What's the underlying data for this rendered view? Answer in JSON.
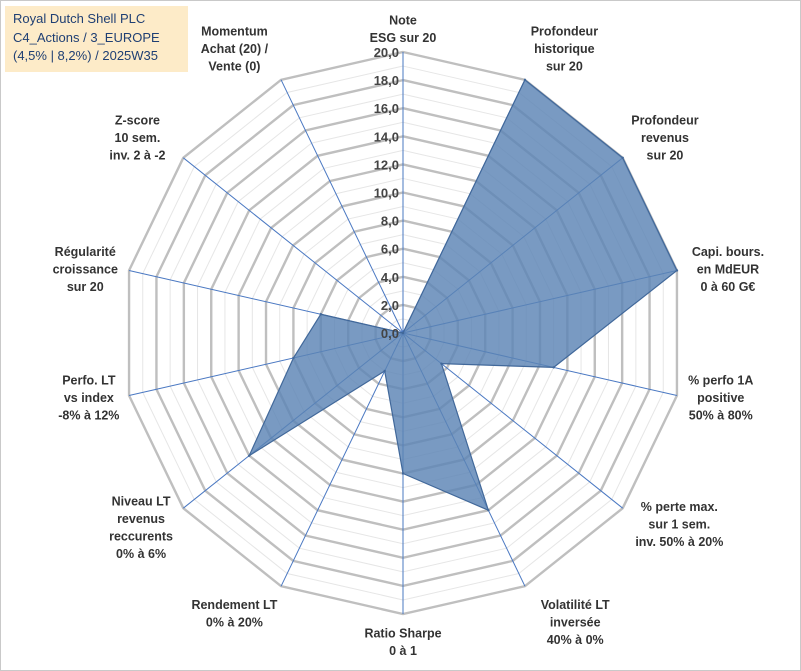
{
  "title_box": {
    "line1": "Royal Dutch Shell PLC",
    "line2": "C4_Actions / 3_EUROPE",
    "line3": "(4,5% | 8,2%) / 2025W35",
    "background_color": "#fdebc8",
    "text_color": "#1f3f73"
  },
  "chart_data": {
    "type": "radar",
    "rmin": 0,
    "rmax": 20,
    "ticks": [
      "0,0",
      "2,0",
      "4,0",
      "6,0",
      "8,0",
      "10,0",
      "12,0",
      "14,0",
      "16,0",
      "18,0",
      "20,0"
    ],
    "grid": true,
    "axes": [
      {
        "label": [
          "Note",
          "ESG sur 20"
        ],
        "value": 0
      },
      {
        "label": [
          "Profondeur",
          "historique",
          "sur 20"
        ],
        "value": 20
      },
      {
        "label": [
          "Profondeur",
          "revenus",
          "sur 20"
        ],
        "value": 20
      },
      {
        "label": [
          "Capi. bours.",
          "en MdEUR",
          "0 à 60 G€"
        ],
        "value": 20
      },
      {
        "label": [
          "% perfo 1A",
          "positive",
          "50% à 80%"
        ],
        "value": 11
      },
      {
        "label": [
          "% perte max.",
          "sur 1 sem.",
          "inv. 50% à 20%"
        ],
        "value": 3.5
      },
      {
        "label": [
          "Volatilité LT",
          "inversée",
          "40% à 0%"
        ],
        "value": 14
      },
      {
        "label": [
          "Ratio Sharpe",
          "0 à 1"
        ],
        "value": 10
      },
      {
        "label": [
          "Rendement LT",
          "0% à 20%"
        ],
        "value": 3
      },
      {
        "label": [
          "Niveau LT",
          "revenus",
          "reccurents",
          "0% à 6%"
        ],
        "value": 14
      },
      {
        "label": [
          "Perfo. LT",
          "vs index",
          "-8% à 12%"
        ],
        "value": 8
      },
      {
        "label": [
          "Régularité",
          "croissance",
          "sur 20"
        ],
        "value": 6
      },
      {
        "label": [
          "Z-score",
          "10 sem.",
          "inv. 2 à -2"
        ],
        "value": 0
      },
      {
        "label": [
          "Momentum",
          "Achat (20) /",
          "Vente (0)"
        ],
        "value": 0
      }
    ],
    "series": [
      {
        "values": [
          0,
          20,
          20,
          20,
          11,
          3.5,
          14,
          10,
          3,
          14,
          8,
          6,
          0,
          0
        ]
      }
    ],
    "colors": {
      "fill": "#5b84b5",
      "stroke": "#41689a",
      "axis": "#4a78c2",
      "grid": "#bfbfbf"
    }
  }
}
